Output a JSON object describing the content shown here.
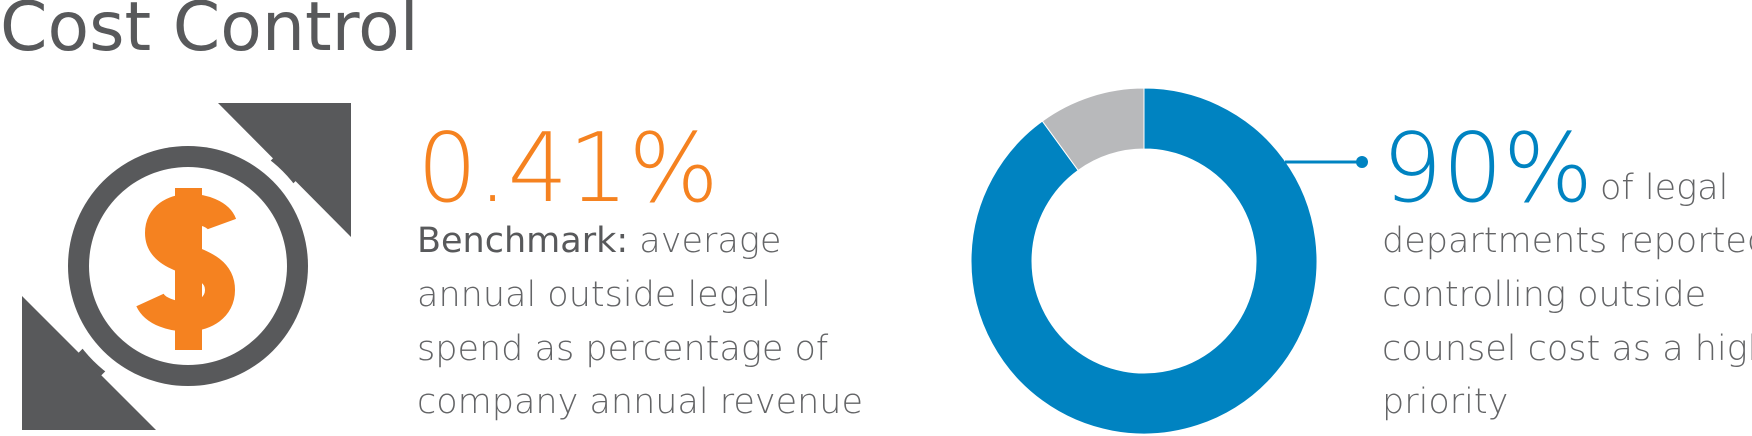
{
  "title": "Cost Control",
  "benchmark": {
    "figure": "0.41%",
    "label": "Benchmark:",
    "lines": [
      "average",
      "annual outside legal",
      "spend as percentage of",
      "company annual revenue"
    ]
  },
  "chart_data": {
    "type": "donut",
    "values": [
      90,
      10
    ],
    "value_labels": [
      "90%",
      null
    ],
    "colors": [
      "#0083c1",
      "#b8b9bb"
    ],
    "caption_lines": [
      "of legal",
      "departments reported",
      "controlling outside",
      "counsel cost as a high",
      "priority"
    ]
  }
}
